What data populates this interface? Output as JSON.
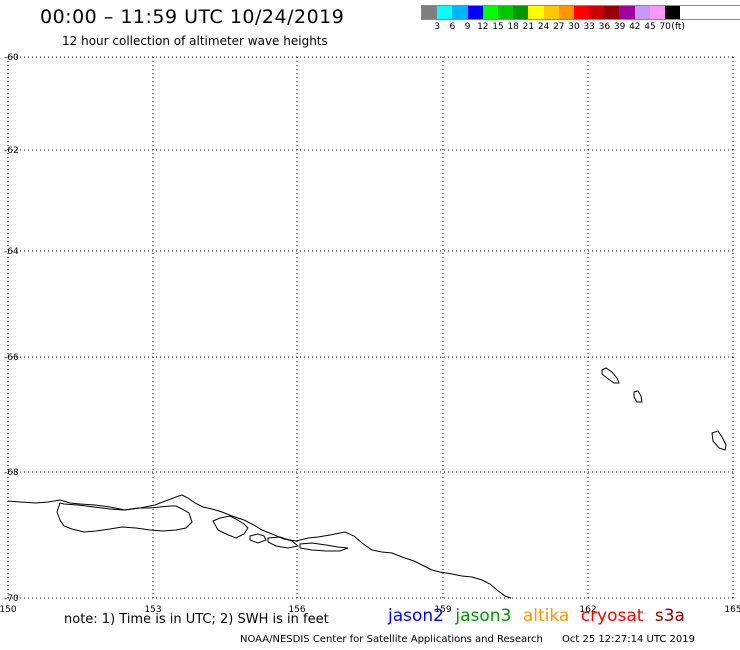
{
  "title": "00:00 – 11:59 UTC 10/24/2019",
  "subtitle": "12 hour collection of altimeter wave heights",
  "legend": {
    "unit": "(ft)",
    "colors": [
      "#7f7f7f",
      "#00ffff",
      "#00b4ff",
      "#0000ff",
      "#00ff00",
      "#00c800",
      "#009600",
      "#ffff00",
      "#ffc800",
      "#ff9600",
      "#ff0000",
      "#c80000",
      "#960000",
      "#a000a0",
      "#c896ff",
      "#ff96ff",
      "#000000"
    ],
    "labels": [
      "3",
      "6",
      "9",
      "12",
      "15",
      "18",
      "21",
      "24",
      "27",
      "30",
      "33",
      "36",
      "39",
      "42",
      "45",
      "70"
    ]
  },
  "map": {
    "lat_labels": [
      "-60",
      "-62",
      "-64",
      "-66",
      "-68",
      "-70"
    ],
    "lon_labels": [
      "150",
      "153",
      "156",
      "159",
      "162",
      "165"
    ],
    "grid_style": "dotted"
  },
  "note": "note: 1) Time is in UTC; 2) SWH is in feet",
  "satellites": [
    {
      "name": "jason2",
      "color": "#0000ff"
    },
    {
      "name": "jason3",
      "color": "#009600"
    },
    {
      "name": "altika",
      "color": "#ff9600"
    },
    {
      "name": "cryosat",
      "color": "#ff0000"
    },
    {
      "name": "s3a",
      "color": "#960000"
    }
  ],
  "credit": "NOAA/NESDIS Center for Satellite Applications and Research",
  "timestamp": "Oct 25 12:27:14 UTC 2019"
}
